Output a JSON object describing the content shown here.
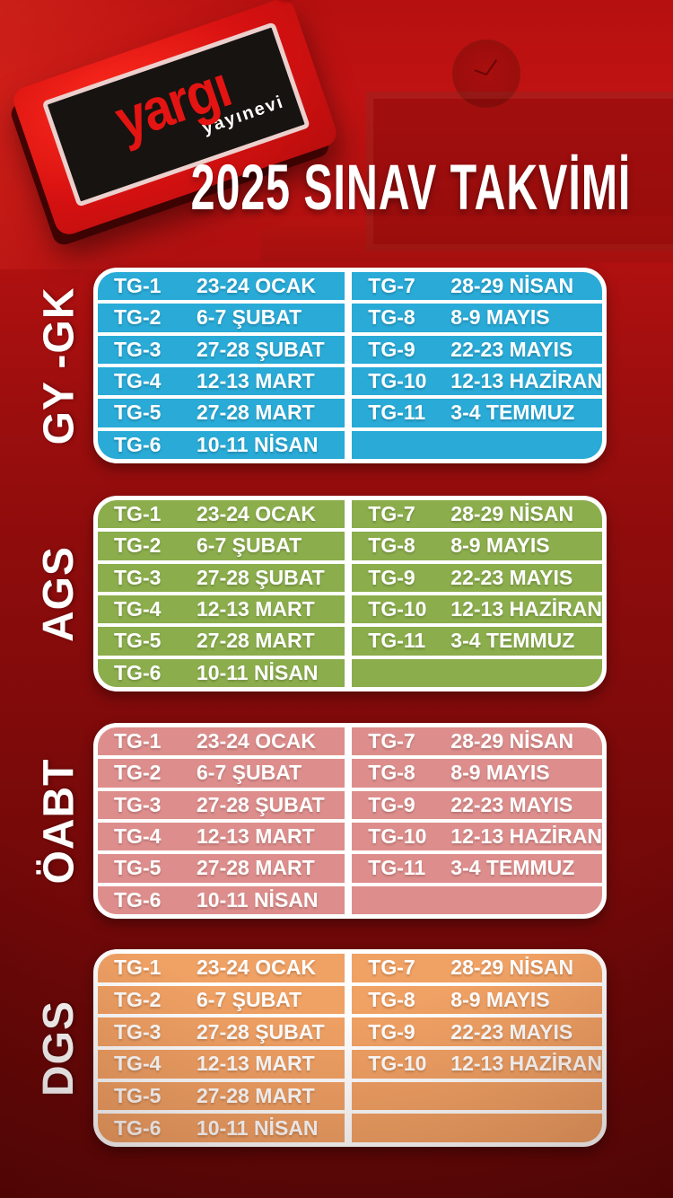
{
  "title": "2025 SINAV TAKVİMİ",
  "logo": {
    "brand": "yargı",
    "subtitle": "yayınevi",
    "registered": "®"
  },
  "colors": {
    "background_top": "#c01212",
    "background_bottom": "#600707",
    "table_border": "#ffffff",
    "text": "#ffffff",
    "logo_red": "#d61111",
    "logo_black": "#171310"
  },
  "sections": [
    {
      "label": "GY -GK",
      "color": "#29aad7",
      "rows_left": [
        {
          "tg": "TG-1",
          "date": "23-24 OCAK"
        },
        {
          "tg": "TG-2",
          "date": "6-7 ŞUBAT"
        },
        {
          "tg": "TG-3",
          "date": "27-28 ŞUBAT"
        },
        {
          "tg": "TG-4",
          "date": "12-13 MART"
        },
        {
          "tg": "TG-5",
          "date": "27-28 MART"
        },
        {
          "tg": "TG-6",
          "date": "10-11 NİSAN"
        }
      ],
      "rows_right": [
        {
          "tg": "TG-7",
          "date": "28-29 NİSAN"
        },
        {
          "tg": "TG-8",
          "date": "8-9 MAYIS"
        },
        {
          "tg": "TG-9",
          "date": "22-23 MAYIS"
        },
        {
          "tg": "TG-10",
          "date": "12-13 HAZİRAN"
        },
        {
          "tg": "TG-11",
          "date": "3-4 TEMMUZ"
        },
        {
          "tg": "",
          "date": ""
        }
      ]
    },
    {
      "label": "AGS",
      "color": "#8bad4c",
      "rows_left": [
        {
          "tg": "TG-1",
          "date": "23-24 OCAK"
        },
        {
          "tg": "TG-2",
          "date": "6-7 ŞUBAT"
        },
        {
          "tg": "TG-3",
          "date": "27-28 ŞUBAT"
        },
        {
          "tg": "TG-4",
          "date": "12-13 MART"
        },
        {
          "tg": "TG-5",
          "date": "27-28 MART"
        },
        {
          "tg": "TG-6",
          "date": "10-11 NİSAN"
        }
      ],
      "rows_right": [
        {
          "tg": "TG-7",
          "date": "28-29 NİSAN"
        },
        {
          "tg": "TG-8",
          "date": "8-9 MAYIS"
        },
        {
          "tg": "TG-9",
          "date": "22-23 MAYIS"
        },
        {
          "tg": "TG-10",
          "date": "12-13 HAZİRAN"
        },
        {
          "tg": "TG-11",
          "date": "3-4 TEMMUZ"
        },
        {
          "tg": "",
          "date": ""
        }
      ]
    },
    {
      "label": "ÖABT",
      "color": "#dd8e8c",
      "rows_left": [
        {
          "tg": "TG-1",
          "date": "23-24 OCAK"
        },
        {
          "tg": "TG-2",
          "date": "6-7 ŞUBAT"
        },
        {
          "tg": "TG-3",
          "date": "27-28 ŞUBAT"
        },
        {
          "tg": "TG-4",
          "date": "12-13 MART"
        },
        {
          "tg": "TG-5",
          "date": "27-28 MART"
        },
        {
          "tg": "TG-6",
          "date": "10-11 NİSAN"
        }
      ],
      "rows_right": [
        {
          "tg": "TG-7",
          "date": "28-29 NİSAN"
        },
        {
          "tg": "TG-8",
          "date": "8-9 MAYIS"
        },
        {
          "tg": "TG-9",
          "date": "22-23 MAYIS"
        },
        {
          "tg": "TG-10",
          "date": "12-13 HAZİRAN"
        },
        {
          "tg": "TG-11",
          "date": "3-4 TEMMUZ"
        },
        {
          "tg": "",
          "date": ""
        }
      ]
    },
    {
      "label": "DGS",
      "color": "#f0a164",
      "rows_left": [
        {
          "tg": "TG-1",
          "date": "23-24 OCAK"
        },
        {
          "tg": "TG-2",
          "date": "6-7 ŞUBAT"
        },
        {
          "tg": "TG-3",
          "date": "27-28 ŞUBAT"
        },
        {
          "tg": "TG-4",
          "date": "12-13 MART"
        },
        {
          "tg": "TG-5",
          "date": "27-28 MART"
        },
        {
          "tg": "TG-6",
          "date": "10-11 NİSAN"
        }
      ],
      "rows_right": [
        {
          "tg": "TG-7",
          "date": "28-29 NİSAN"
        },
        {
          "tg": "TG-8",
          "date": "8-9 MAYIS"
        },
        {
          "tg": "TG-9",
          "date": "22-23 MAYIS"
        },
        {
          "tg": "TG-10",
          "date": "12-13 HAZİRAN"
        },
        {
          "tg": "",
          "date": ""
        },
        {
          "tg": "",
          "date": ""
        }
      ]
    }
  ]
}
